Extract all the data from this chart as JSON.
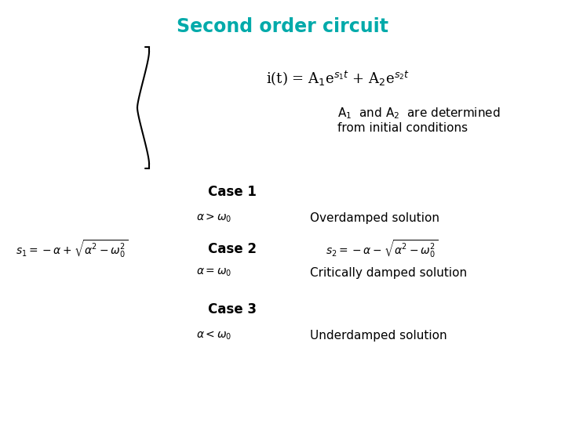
{
  "title": "Second order circuit",
  "title_color": "#00AAAA",
  "title_fontsize": 17,
  "bg_color": "#FFFFFF",
  "subtitle_line1": "A$_1$  and A$_2$  are determined",
  "subtitle_line2": "from initial conditions",
  "case1_label": "Case 1",
  "case1_cond": "$\\alpha > \\omega_0$",
  "case1_sol": "Overdamped solution",
  "s1_eq": "$s_1 = -\\alpha + \\sqrt{\\alpha^2 - \\omega_0^2}$",
  "s2_eq": "$s_2 = -\\alpha - \\sqrt{\\alpha^2 - \\omega_0^2}$",
  "case2_label": "Case 2",
  "case2_cond": "$\\alpha = \\omega_0$",
  "case2_sol": "Critically damped solution",
  "case3_label": "Case 3",
  "case3_cond": "$\\alpha < \\omega_0$",
  "case3_sol": "Underdamped solution",
  "text_color": "#000000",
  "eq_color": "#000000",
  "text_fontsize": 11,
  "case_fontsize": 12,
  "eq_fontsize": 10
}
